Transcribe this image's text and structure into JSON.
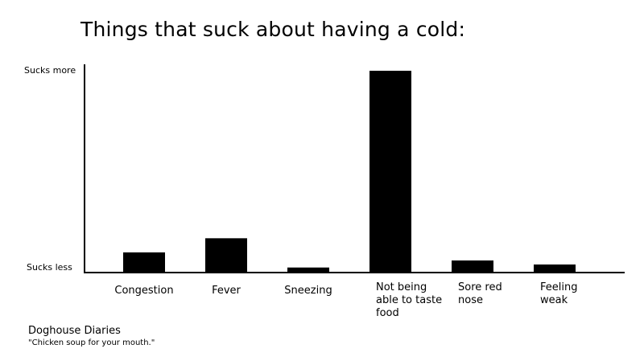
{
  "title": "Things that suck about having a cold:",
  "credit": "Doghouse Diaries",
  "tagline": "\"Chicken soup for your mouth.\"",
  "chart_data": {
    "type": "bar",
    "title": "Things that suck about having a cold:",
    "ylabel_top": "Sucks more",
    "ylabel_bottom": "Sucks less",
    "categories": [
      "Congestion",
      "Fever",
      "Sneezing",
      "Not being able to taste food",
      "Sore red nose",
      "Feeling weak"
    ],
    "category_lines": [
      [
        "Congestion"
      ],
      [
        "Fever"
      ],
      [
        "Sneezing"
      ],
      [
        "Not being",
        "able to taste",
        "food"
      ],
      [
        "Sore red",
        "nose"
      ],
      [
        "Feeling",
        "weak"
      ]
    ],
    "values": [
      10,
      17,
      2.5,
      100,
      6,
      4
    ],
    "ylim": [
      0,
      100
    ],
    "bar_color": "#000000",
    "grid": false
  }
}
